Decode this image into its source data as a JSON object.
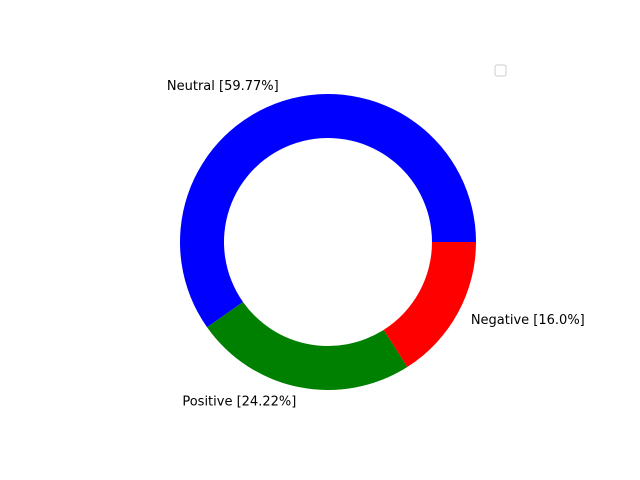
{
  "chart_data": {
    "type": "pie",
    "donut": true,
    "start_angle_deg": 0,
    "direction": "counterclockwise",
    "slices": [
      {
        "category": "Neutral",
        "value": 59.77,
        "label": "Neutral [59.77%]",
        "color": "#0000ff"
      },
      {
        "category": "Positive",
        "value": 24.22,
        "label": "Positive [24.22%]",
        "color": "#008000"
      },
      {
        "category": "Negative",
        "value": 16.0,
        "label": "Negative [16.0%]",
        "color": "#ff0000"
      }
    ],
    "legend": {
      "placement": "top-right",
      "entries": []
    }
  }
}
